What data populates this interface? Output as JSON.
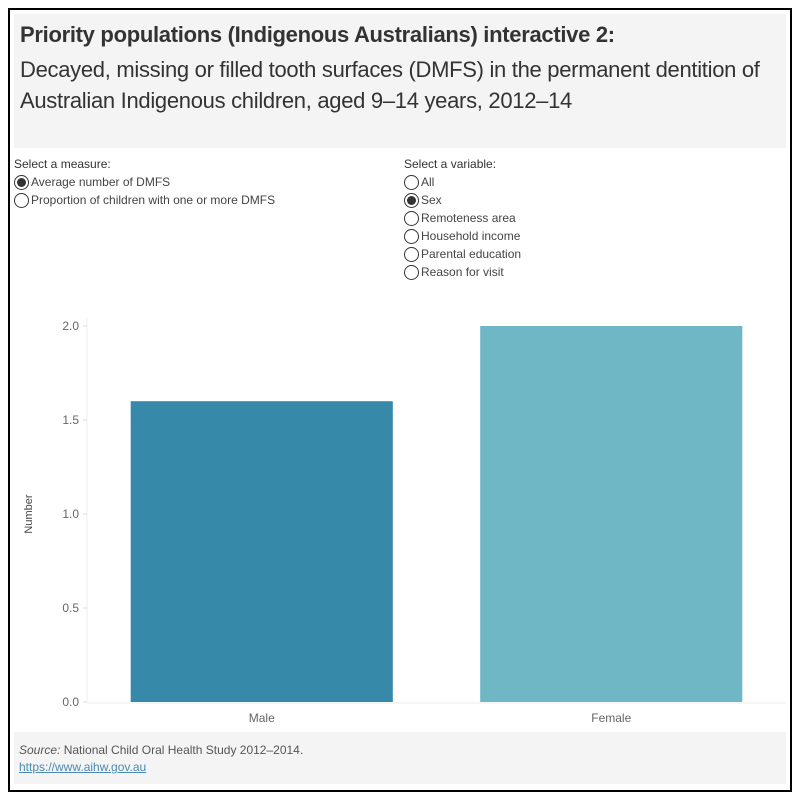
{
  "header": {
    "title": "Priority populations (Indigenous Australians) interactive 2:",
    "subtitle": "Decayed, missing or filled tooth surfaces (DMFS) in the permanent dentition of Australian Indigenous children, aged 9–14 years, 2012–14"
  },
  "measure": {
    "label": "Select a measure:",
    "options": [
      {
        "label": "Average number of DMFS",
        "selected": true
      },
      {
        "label": "Proportion of children with one or more DMFS",
        "selected": false
      }
    ]
  },
  "variable": {
    "label": "Select a variable:",
    "options": [
      {
        "label": "All",
        "selected": false
      },
      {
        "label": "Sex",
        "selected": true
      },
      {
        "label": "Remoteness area",
        "selected": false
      },
      {
        "label": "Household income",
        "selected": false
      },
      {
        "label": "Parental education",
        "selected": false
      },
      {
        "label": "Reason for visit",
        "selected": false
      }
    ]
  },
  "chart_data": {
    "type": "bar",
    "categories": [
      "Male",
      "Female"
    ],
    "values": [
      1.6,
      2.0
    ],
    "colors": [
      "#3689a9",
      "#6fb7c5"
    ],
    "xlabel": "",
    "ylabel": "Number",
    "ylim": [
      0,
      2.0
    ],
    "yticks": [
      "0.0",
      "0.5",
      "1.0",
      "1.5",
      "2.0"
    ],
    "grid": false
  },
  "footer": {
    "source_label": "Source:",
    "source_text": " National Child Oral Health Study 2012–2014.",
    "link": "https://www.aihw.gov.au"
  }
}
